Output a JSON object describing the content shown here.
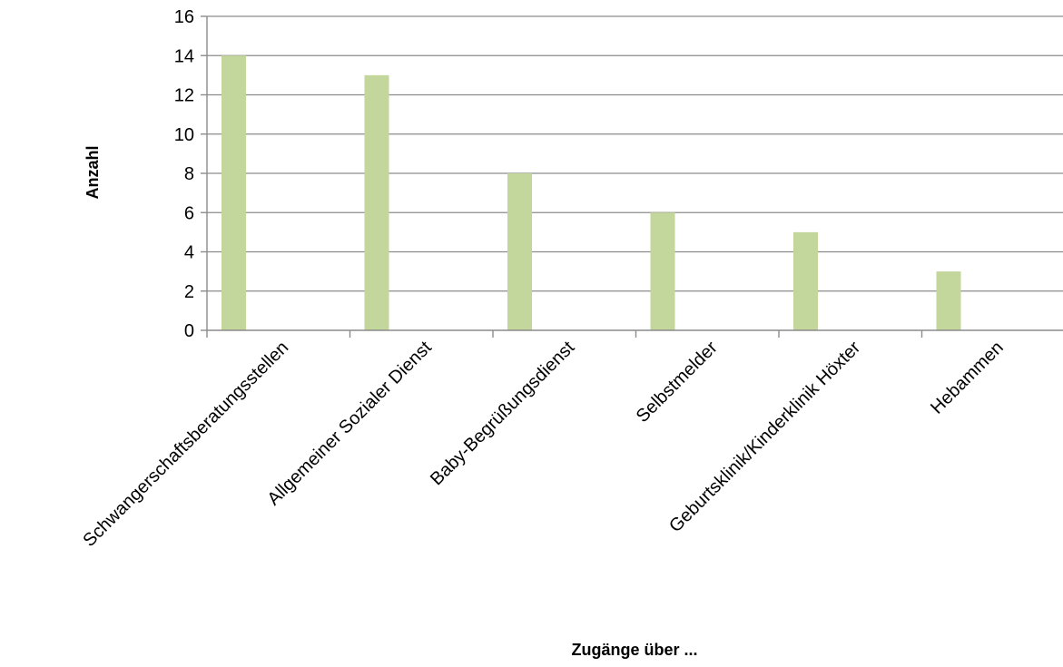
{
  "chart_data": {
    "type": "bar",
    "title": "",
    "xlabel": "Zugänge über ...",
    "ylabel": "Anzahl",
    "categories": [
      "Schwangerschaftsberatungsstellen",
      "Allgemeiner Sozialer Dienst",
      "Baby-Begrüßungsdienst",
      "Selbstmelder",
      "Geburtsklinik/Kinderklinik Höxter",
      "Hebammen"
    ],
    "values": [
      14,
      13,
      8,
      6,
      5,
      3
    ],
    "ylim": [
      0,
      16
    ],
    "yticks": [
      0,
      2,
      4,
      6,
      8,
      10,
      12,
      14,
      16
    ],
    "grid": true,
    "legend": "none",
    "colors": {
      "bar": "#c3d69b",
      "grid": "#8c8c8c"
    }
  }
}
